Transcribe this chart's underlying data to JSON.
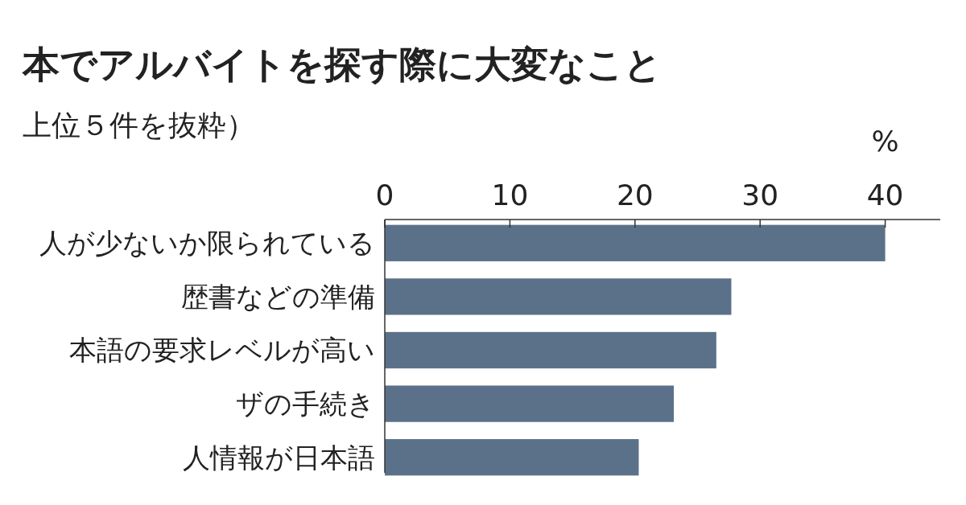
{
  "chart_data": {
    "type": "bar",
    "orientation": "horizontal",
    "title": "本でアルバイトを探す際に大変なこと",
    "subtitle": "上位５件を抜粋）",
    "xlabel": "%",
    "categories": [
      "人が少ないか限られている",
      "歴書などの準備",
      "本語の要求レベルが高い",
      "ザの手続き",
      "人情報が日本語"
    ],
    "values": [
      40.0,
      27.7,
      26.5,
      23.1,
      20.3
    ],
    "color": "#5b7189",
    "xlim": [
      0,
      44.4
    ],
    "xticks": [
      0,
      10,
      20,
      30,
      40
    ],
    "grid": false
  }
}
